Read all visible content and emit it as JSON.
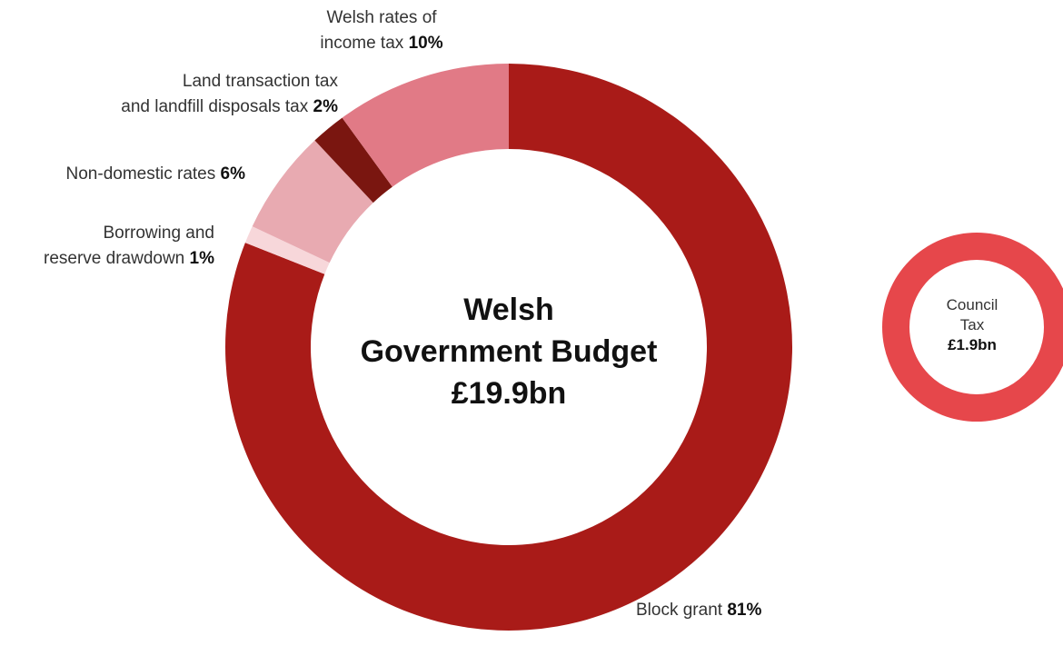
{
  "chart_data": [
    {
      "type": "pie",
      "center_label": {
        "line1": "Welsh",
        "line2": "Government Budget",
        "line3": "£19.9bn"
      },
      "slices": [
        {
          "label": "Block grant",
          "value": 81,
          "value_text": "81%",
          "color": "#a91b18"
        },
        {
          "label": "Borrowing and reserve drawdown",
          "line1": "Borrowing and",
          "line2": "reserve drawdown",
          "value": 1,
          "value_text": "1%",
          "color": "#f7d7da"
        },
        {
          "label": "Non-domestic rates",
          "value": 6,
          "value_text": "6%",
          "color": "#e8aab1"
        },
        {
          "label": "Land transaction tax and landfill disposals tax",
          "line1": "Land transaction tax",
          "line2": "and landfill disposals tax",
          "value": 2,
          "value_text": "2%",
          "color": "#7a1610"
        },
        {
          "label": "Welsh rates of income tax",
          "line1": "Welsh rates of",
          "line2": "income tax",
          "value": 10,
          "value_text": "10%",
          "color": "#e17a86"
        }
      ]
    },
    {
      "type": "pie",
      "center_label": {
        "line1": "Council",
        "line2": "Tax",
        "line3": "£1.9bn"
      },
      "slices": [
        {
          "label": "Council Tax",
          "value": 100,
          "color": "#e6474b"
        }
      ]
    }
  ]
}
